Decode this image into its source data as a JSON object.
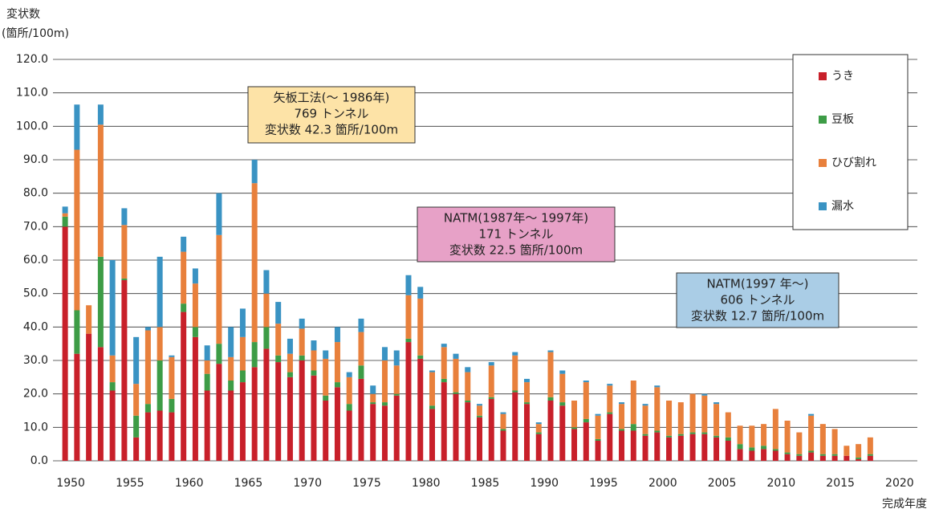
{
  "chart_data": {
    "type": "stacked_bar",
    "y_label_lines": [
      "変状数",
      "(箇所/100m)"
    ],
    "x_label": "完成年度",
    "x": [
      1950,
      1951,
      1952,
      1953,
      1954,
      1955,
      1956,
      1957,
      1958,
      1959,
      1960,
      1961,
      1962,
      1963,
      1964,
      1965,
      1966,
      1967,
      1968,
      1969,
      1970,
      1971,
      1972,
      1973,
      1974,
      1975,
      1976,
      1977,
      1978,
      1979,
      1980,
      1981,
      1982,
      1983,
      1984,
      1985,
      1986,
      1987,
      1988,
      1989,
      1990,
      1991,
      1992,
      1993,
      1994,
      1995,
      1996,
      1997,
      1998,
      1999,
      2000,
      2001,
      2002,
      2003,
      2004,
      2005,
      2006,
      2007,
      2008,
      2009,
      2010,
      2011,
      2012,
      2013,
      2014,
      2015,
      2016,
      2017,
      2018
    ],
    "xlim": [
      1948.5,
      2021.5
    ],
    "xticks": [
      1950,
      1955,
      1960,
      1965,
      1970,
      1975,
      1980,
      1985,
      1990,
      1995,
      2000,
      2005,
      2010,
      2015,
      2020
    ],
    "ylim": [
      0,
      120
    ],
    "yticks": [
      {
        "value": 0,
        "label": "0.0"
      },
      {
        "value": 10,
        "label": "10.0"
      },
      {
        "value": 20,
        "label": "20.0"
      },
      {
        "value": 30,
        "label": "30.0"
      },
      {
        "value": 40,
        "label": "40.0"
      },
      {
        "value": 50,
        "label": "50.0"
      },
      {
        "value": 60,
        "label": "60.0"
      },
      {
        "value": 70,
        "label": "70.0"
      },
      {
        "value": 80,
        "label": "80.0"
      },
      {
        "value": 90,
        "label": "90.0"
      },
      {
        "value": 100,
        "label": "100.0"
      },
      {
        "value": 110,
        "label": "110.0"
      },
      {
        "value": 120,
        "label": "120.0"
      }
    ],
    "grid": true,
    "legend": "right",
    "series": [
      {
        "name": "うき",
        "color": "#c8202a",
        "values": [
          70,
          32,
          38,
          34,
          21,
          54,
          7,
          14.5,
          15,
          14.5,
          44.5,
          37,
          21,
          29,
          21,
          23.5,
          28,
          33.5,
          29.5,
          25,
          30,
          25.5,
          18,
          22,
          15,
          24.5,
          17,
          16.5,
          19.5,
          35.5,
          30.5,
          15.5,
          23.5,
          20,
          17.5,
          13,
          18.5,
          9,
          20.5,
          17,
          8,
          18,
          16.5,
          9.5,
          11.5,
          6,
          14,
          9,
          9,
          7.5,
          8.5,
          7,
          7.5,
          8,
          8,
          7,
          6,
          3.5,
          3,
          3.5,
          3,
          2,
          1.5,
          2.5,
          1.5,
          1.5,
          1.5,
          0.5,
          1.5
        ]
      },
      {
        "name": "豆板",
        "color": "#3d9c46",
        "values": [
          3,
          13,
          0,
          27,
          2.5,
          0.5,
          6.5,
          2.5,
          15,
          4,
          2.5,
          3,
          5,
          6,
          3,
          3.5,
          7.5,
          6.5,
          2,
          1.5,
          1.5,
          1.5,
          1.5,
          1.5,
          2,
          4,
          0.5,
          1,
          0.5,
          1,
          1,
          1,
          1,
          0.5,
          0.5,
          0.5,
          0.5,
          0.5,
          0.5,
          0.5,
          0.5,
          1,
          1,
          0.5,
          1,
          0.5,
          0.5,
          0.5,
          2,
          0.5,
          0.5,
          0.5,
          0.5,
          0.5,
          0.5,
          0.5,
          1,
          1.5,
          1,
          1,
          0.5,
          0.5,
          0.5,
          0.5,
          0.5,
          0.5,
          0,
          0.5,
          0.5
        ]
      },
      {
        "name": "ひび割れ",
        "color": "#e8803c",
        "values": [
          1,
          48,
          8.5,
          39.5,
          8,
          16,
          9.5,
          22,
          10,
          12.5,
          15.5,
          13,
          4,
          32.5,
          7,
          10,
          47.5,
          10,
          9.5,
          5.5,
          8,
          6,
          11,
          12,
          8,
          10,
          2.5,
          12.5,
          8.5,
          13,
          17,
          10,
          9.5,
          10,
          8.5,
          3,
          9.5,
          4.5,
          10.5,
          6,
          2.5,
          13.5,
          8.5,
          8,
          11,
          7,
          8,
          7.5,
          13,
          8.5,
          13,
          10.5,
          9.5,
          11.5,
          11,
          9.5,
          7.5,
          5.5,
          6.5,
          6.5,
          12,
          9.5,
          6.5,
          10.5,
          9,
          7.5,
          3,
          4,
          5
        ]
      },
      {
        "name": "漏水",
        "color": "#3a93c3",
        "values": [
          2,
          13.5,
          0,
          6,
          28.5,
          5,
          14,
          1,
          21,
          0.5,
          4.5,
          4.5,
          4.5,
          12.5,
          9,
          8.5,
          7,
          7,
          6.5,
          4.5,
          3,
          3,
          2.5,
          4.5,
          1.5,
          4,
          2.5,
          4,
          4.5,
          6,
          3.5,
          0.5,
          1,
          1.5,
          1.5,
          0.5,
          1,
          0.5,
          1,
          1,
          0.5,
          0.5,
          1,
          0,
          0.5,
          0.5,
          0.5,
          0.5,
          0,
          0.5,
          0.5,
          0,
          0,
          0,
          0.5,
          0.5,
          0,
          0,
          0,
          0,
          0,
          0,
          0,
          0.5,
          0,
          0,
          0,
          0,
          0
        ]
      }
    ],
    "annotations": [
      {
        "lines": [
          "矢板工法(〜 1986年)",
          "769 トンネル",
          "変状数 42.3 箇所/100m"
        ],
        "color": "#fde3a7"
      },
      {
        "lines": [
          "NATM(1987年〜 1997年)",
          "171 トンネル",
          "変状数 22.5 箇所/100m"
        ],
        "color": "#e7a1c7"
      },
      {
        "lines": [
          "NATM(1997 年〜)",
          "606 トンネル",
          "変状数 12.7 箇所/100m"
        ],
        "color": "#aacde6"
      }
    ]
  }
}
